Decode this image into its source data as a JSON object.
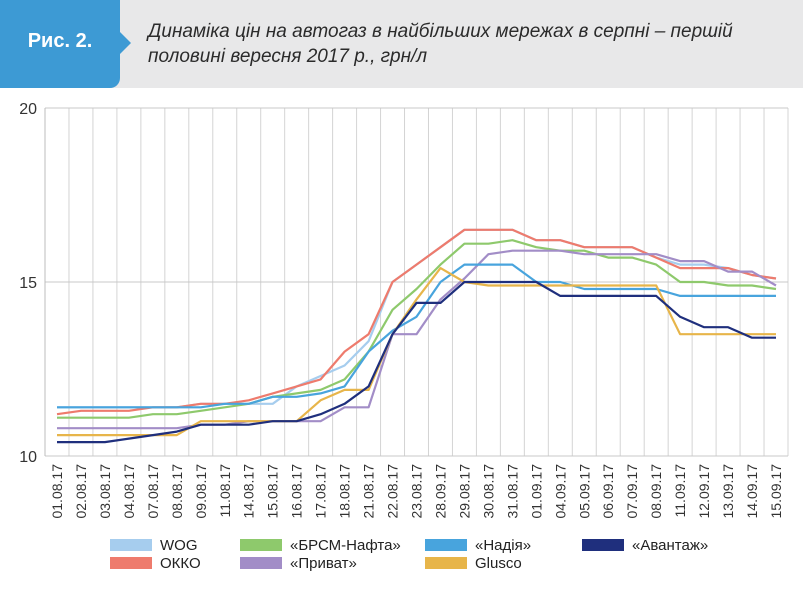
{
  "figure": {
    "label": "Рис. 2.",
    "title": "Динаміка цін на автогаз в найбільших мережах в серпні – першій половині вересня 2017 р., грн/л"
  },
  "colors": {
    "header_bg": "#e8e8e9",
    "badge": "#3d9ad4"
  },
  "chart_data": {
    "type": "line",
    "ylim": [
      10,
      20
    ],
    "yticks": [
      10,
      15,
      20
    ],
    "grid": "vertical",
    "legend_position": "bottom",
    "x": [
      "01.08.17",
      "02.08.17",
      "03.08.17",
      "04.08.17",
      "07.08.17",
      "08.08.17",
      "09.08.17",
      "11.08.17",
      "14.08.17",
      "15.08.17",
      "16.08.17",
      "17.08.17",
      "18.08.17",
      "21.08.17",
      "22.08.17",
      "23.08.17",
      "28.09.17",
      "29.08.17",
      "30.08.17",
      "31.08.17",
      "01.09.17",
      "04.09.17",
      "05.09.17",
      "06.09.17",
      "07.09.17",
      "08.09.17",
      "11.09.17",
      "12.09.17",
      "13.09.17",
      "14.09.17",
      "15.09.17"
    ],
    "series": [
      {
        "name": "WOG",
        "color": "#a6cdee",
        "values": [
          11.4,
          11.4,
          11.4,
          11.4,
          11.4,
          11.4,
          11.5,
          11.5,
          11.5,
          11.5,
          12.0,
          12.3,
          12.6,
          13.3,
          15.0,
          15.5,
          16.0,
          16.5,
          16.5,
          16.5,
          16.2,
          16.2,
          16.0,
          16.0,
          16.0,
          15.7,
          15.5,
          15.5,
          15.4,
          15.2,
          15.1
        ]
      },
      {
        "name": "ОККО",
        "color": "#ee7b6d",
        "values": [
          11.2,
          11.3,
          11.3,
          11.3,
          11.4,
          11.4,
          11.5,
          11.5,
          11.6,
          11.8,
          12.0,
          12.2,
          13.0,
          13.5,
          15.0,
          15.5,
          16.0,
          16.5,
          16.5,
          16.5,
          16.2,
          16.2,
          16.0,
          16.0,
          16.0,
          15.7,
          15.4,
          15.4,
          15.4,
          15.2,
          15.1
        ]
      },
      {
        "name": "«БРСМ-Нафта»",
        "color": "#8ec96c",
        "values": [
          11.1,
          11.1,
          11.1,
          11.1,
          11.2,
          11.2,
          11.3,
          11.4,
          11.5,
          11.7,
          11.8,
          11.9,
          12.2,
          13.0,
          14.2,
          14.8,
          15.5,
          16.1,
          16.1,
          16.2,
          16.0,
          15.9,
          15.9,
          15.7,
          15.7,
          15.5,
          15.0,
          15.0,
          14.9,
          14.9,
          14.8
        ]
      },
      {
        "name": "«Приват»",
        "color": "#a28dc7",
        "values": [
          10.8,
          10.8,
          10.8,
          10.8,
          10.8,
          10.8,
          10.9,
          10.9,
          11.0,
          11.0,
          11.0,
          11.0,
          11.4,
          11.4,
          13.5,
          13.5,
          14.5,
          15.1,
          15.8,
          15.9,
          15.9,
          15.9,
          15.8,
          15.8,
          15.8,
          15.8,
          15.6,
          15.6,
          15.3,
          15.3,
          14.9
        ]
      },
      {
        "name": "«Надія»",
        "color": "#48a4dd",
        "values": [
          11.4,
          11.4,
          11.4,
          11.4,
          11.4,
          11.4,
          11.4,
          11.5,
          11.5,
          11.7,
          11.7,
          11.8,
          12.0,
          13.0,
          13.6,
          14.0,
          15.0,
          15.5,
          15.5,
          15.5,
          15.0,
          15.0,
          14.8,
          14.8,
          14.8,
          14.8,
          14.6,
          14.6,
          14.6,
          14.6,
          14.6
        ]
      },
      {
        "name": "Glusco",
        "color": "#e7b54a",
        "values": [
          10.6,
          10.6,
          10.6,
          10.6,
          10.6,
          10.6,
          11.0,
          11.0,
          11.0,
          11.0,
          11.0,
          11.6,
          11.9,
          11.9,
          13.5,
          14.5,
          15.4,
          15.0,
          14.9,
          14.9,
          14.9,
          14.9,
          14.9,
          14.9,
          14.9,
          14.9,
          13.5,
          13.5,
          13.5,
          13.5,
          13.5
        ]
      },
      {
        "name": "«Авантаж»",
        "color": "#1f2f7d",
        "values": [
          10.4,
          10.4,
          10.4,
          10.5,
          10.6,
          10.7,
          10.9,
          10.9,
          10.9,
          11.0,
          11.0,
          11.2,
          11.5,
          12.0,
          13.5,
          14.4,
          14.4,
          15.0,
          15.0,
          15.0,
          15.0,
          14.6,
          14.6,
          14.6,
          14.6,
          14.6,
          14.0,
          13.7,
          13.7,
          13.4,
          13.4
        ]
      }
    ],
    "legend_order": [
      "WOG",
      "«БРСМ-Нафта»",
      "«Надія»",
      "«Авантаж»",
      "ОККО",
      "«Приват»",
      "Glusco"
    ]
  }
}
